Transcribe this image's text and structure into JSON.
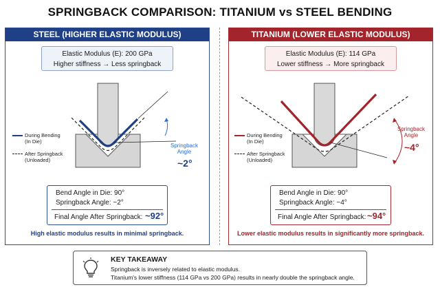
{
  "title": "SPRINGBACK COMPARISON: TITANIUM vs STEEL BENDING",
  "colors": {
    "steel": "#1f3f86",
    "titanium": "#a3242a"
  },
  "steel": {
    "header": "STEEL (HIGHER ELASTIC MODULUS)",
    "modulus_line": "Elastic Modulus (E): 200 GPa",
    "stiffness_line": "Higher stiffness → Less springback",
    "angle_label_1": "Springback",
    "angle_label_2": "Angle",
    "angle_value": "~2°",
    "legend_bending_1": "During Bending",
    "legend_bending_2": "(In Die)",
    "legend_after_1": "After Springback",
    "legend_after_2": "(Unloaded)",
    "bend_angle_row": "Bend Angle in Die:  90°",
    "springback_row": "Springback Angle:  ~2°",
    "final_label": "Final Angle After Springback:",
    "final_value": "~92°",
    "conclusion": "High elastic modulus results in minimal springback."
  },
  "titanium": {
    "header": "TITANIUM (LOWER ELASTIC MODULUS)",
    "modulus_line": "Elastic Modulus (E): 114 GPa",
    "stiffness_line": "Lower stiffness → More springback",
    "angle_label_1": "Springback",
    "angle_label_2": "Angle",
    "angle_value": "~4°",
    "legend_bending_1": "During Bending",
    "legend_bending_2": "(In Die)",
    "legend_after_1": "After Springback",
    "legend_after_2": "(Unloaded)",
    "bend_angle_row": "Bend Angle in Die:  90°",
    "springback_row": "Springback Angle:  ~4°",
    "final_label": "Final Angle After Springback:",
    "final_value": "~94°",
    "conclusion": "Lower elastic modulus results in significantly more springback."
  },
  "takeaway": {
    "icon": "lightbulb-icon",
    "title": "KEY TAKEAWAY",
    "line1": "Springback is inversely related to elastic modulus.",
    "line2": "Titanium's lower stiffness (114 GPa vs 200 GPa) results in nearly double the springback angle."
  }
}
